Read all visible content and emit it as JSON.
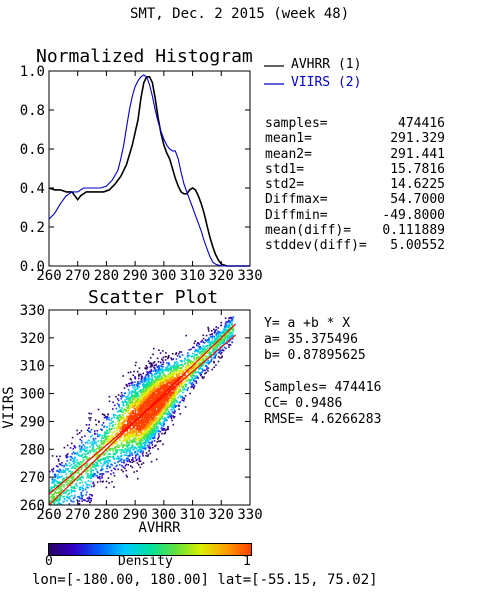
{
  "page_title": "SMT,  Dec. 2 2015 (week 48)",
  "stats_block": {
    "rows": [
      {
        "label": "samples=",
        "value": "474416"
      },
      {
        "label": "mean1=",
        "value": "291.329"
      },
      {
        "label": "mean2=",
        "value": "291.441"
      },
      {
        "label": "std1=",
        "value": "15.7816"
      },
      {
        "label": "std2=",
        "value": "14.6225"
      },
      {
        "label": "Diffmax=",
        "value": "54.7000"
      },
      {
        "label": "Diffmin=",
        "value": "-49.8000"
      },
      {
        "label": "mean(diff)=",
        "value": "0.111889"
      },
      {
        "label": "stddev(diff)=",
        "value": "5.00552"
      }
    ]
  },
  "regression_block": {
    "equation": "Y= a +b * X",
    "a": "a= 35.375496",
    "b": "b= 0.87895625",
    "samples": "Samples= 474416",
    "cc": "CC=  0.9486",
    "rmse": "RMSE= 4.6266283"
  },
  "colorbar": {
    "label": "Density",
    "min_label": "0",
    "max_label": "1",
    "colors": [
      "#2a0060",
      "#3000c8",
      "#0060ff",
      "#00c8ff",
      "#00e0a0",
      "#60e040",
      "#d8f000",
      "#ffa000",
      "#ff4000"
    ]
  },
  "footer_text": "lon=[-180.00, 180.00] lat=[-55.15, 75.02]",
  "chart_data": [
    {
      "type": "line",
      "title": "Normalized Histogram",
      "xlim": [
        260,
        330
      ],
      "ylim": [
        0,
        1
      ],
      "xticks": [
        "260",
        "270",
        "280",
        "290",
        "300",
        "310",
        "320",
        "330"
      ],
      "yticks": [
        "0.0",
        "0.2",
        "0.4",
        "0.6",
        "0.8",
        "1.0"
      ],
      "series": [
        {
          "name": "AVHRR (1)",
          "color": "#000000",
          "points": [
            [
              260,
              0.4
            ],
            [
              262,
              0.39
            ],
            [
              264,
              0.39
            ],
            [
              266,
              0.38
            ],
            [
              268,
              0.38
            ],
            [
              269,
              0.36
            ],
            [
              270,
              0.34
            ],
            [
              271,
              0.36
            ],
            [
              273,
              0.38
            ],
            [
              275,
              0.38
            ],
            [
              277,
              0.38
            ],
            [
              279,
              0.38
            ],
            [
              281,
              0.39
            ],
            [
              283,
              0.42
            ],
            [
              285,
              0.46
            ],
            [
              287,
              0.52
            ],
            [
              289,
              0.62
            ],
            [
              291,
              0.75
            ],
            [
              292,
              0.86
            ],
            [
              293,
              0.94
            ],
            [
              294,
              0.97
            ],
            [
              295,
              0.97
            ],
            [
              296,
              0.94
            ],
            [
              297,
              0.86
            ],
            [
              298,
              0.76
            ],
            [
              299,
              0.68
            ],
            [
              300,
              0.62
            ],
            [
              301,
              0.58
            ],
            [
              302,
              0.55
            ],
            [
              303,
              0.5
            ],
            [
              304,
              0.45
            ],
            [
              305,
              0.41
            ],
            [
              306,
              0.38
            ],
            [
              307,
              0.37
            ],
            [
              308,
              0.37
            ],
            [
              309,
              0.39
            ],
            [
              310,
              0.4
            ],
            [
              311,
              0.39
            ],
            [
              312,
              0.36
            ],
            [
              313,
              0.32
            ],
            [
              314,
              0.27
            ],
            [
              315,
              0.21
            ],
            [
              316,
              0.15
            ],
            [
              317,
              0.1
            ],
            [
              318,
              0.06
            ],
            [
              319,
              0.03
            ],
            [
              320,
              0.01
            ],
            [
              322,
              0.0
            ],
            [
              330,
              0.0
            ]
          ]
        },
        {
          "name": "VIIRS (2)",
          "color": "#0000c8",
          "points": [
            [
              260,
              0.24
            ],
            [
              262,
              0.27
            ],
            [
              264,
              0.32
            ],
            [
              266,
              0.36
            ],
            [
              268,
              0.38
            ],
            [
              270,
              0.38
            ],
            [
              272,
              0.4
            ],
            [
              274,
              0.4
            ],
            [
              276,
              0.4
            ],
            [
              278,
              0.4
            ],
            [
              280,
              0.41
            ],
            [
              282,
              0.44
            ],
            [
              284,
              0.49
            ],
            [
              285,
              0.55
            ],
            [
              286,
              0.62
            ],
            [
              287,
              0.71
            ],
            [
              288,
              0.8
            ],
            [
              289,
              0.87
            ],
            [
              290,
              0.92
            ],
            [
              291,
              0.95
            ],
            [
              292,
              0.97
            ],
            [
              293,
              0.98
            ],
            [
              294,
              0.97
            ],
            [
              295,
              0.93
            ],
            [
              296,
              0.87
            ],
            [
              297,
              0.8
            ],
            [
              298,
              0.74
            ],
            [
              299,
              0.69
            ],
            [
              300,
              0.65
            ],
            [
              301,
              0.62
            ],
            [
              302,
              0.6
            ],
            [
              303,
              0.59
            ],
            [
              304,
              0.59
            ],
            [
              305,
              0.55
            ],
            [
              306,
              0.48
            ],
            [
              307,
              0.42
            ],
            [
              308,
              0.38
            ],
            [
              309,
              0.34
            ],
            [
              310,
              0.3
            ],
            [
              311,
              0.26
            ],
            [
              312,
              0.22
            ],
            [
              313,
              0.18
            ],
            [
              314,
              0.13
            ],
            [
              315,
              0.09
            ],
            [
              316,
              0.05
            ],
            [
              317,
              0.02
            ],
            [
              318,
              0.01
            ],
            [
              320,
              0.0
            ],
            [
              330,
              0.0
            ]
          ]
        }
      ]
    },
    {
      "type": "heatmap",
      "title": "Scatter Plot",
      "xlabel": "AVHRR",
      "ylabel": "VIIRS",
      "xlim": [
        260,
        330
      ],
      "ylim": [
        260,
        330
      ],
      "xticks": [
        "260",
        "270",
        "280",
        "290",
        "300",
        "310",
        "320",
        "330"
      ],
      "yticks": [
        "260",
        "270",
        "280",
        "290",
        "300",
        "310",
        "320",
        "330"
      ],
      "reference_lines": [
        "one_to_one",
        "regression"
      ],
      "line_color": "#ff0000"
    }
  ]
}
